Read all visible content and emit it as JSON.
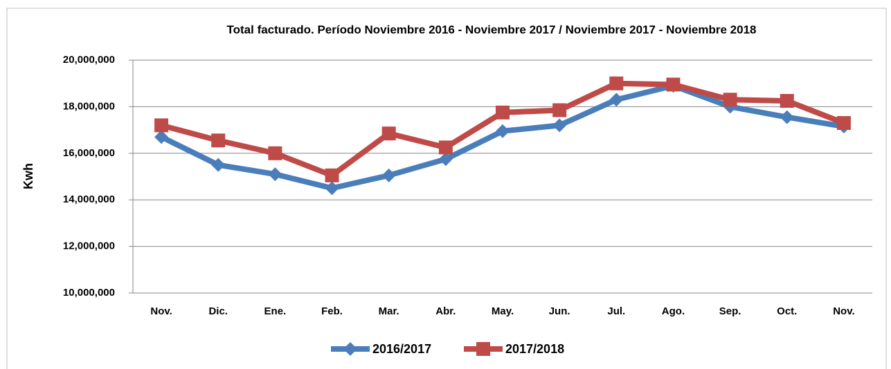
{
  "chart_data": {
    "type": "line",
    "title": "Total facturado. Período Noviembre 2016 - Noviembre 2017 / Noviembre 2017 - Noviembre 2018",
    "y_label": "Kwh",
    "categories": [
      "Nov.",
      "Dic.",
      "Ene.",
      "Feb.",
      "Mar.",
      "Abr.",
      "May.",
      "Jun.",
      "Jul.",
      "Ago.",
      "Sep.",
      "Oct.",
      "Nov."
    ],
    "series": [
      {
        "name": "2016/2017",
        "color": "#4a7ebb",
        "marker": "diamond",
        "values": [
          16700000,
          15500000,
          15100000,
          14500000,
          15050000,
          15750000,
          16950000,
          17200000,
          18300000,
          18900000,
          18000000,
          17550000,
          17150000
        ]
      },
      {
        "name": "2017/2018",
        "color": "#be4b48",
        "marker": "square",
        "values": [
          17200000,
          16550000,
          16000000,
          15050000,
          16850000,
          16250000,
          17750000,
          17850000,
          19000000,
          18950000,
          18300000,
          18250000,
          17300000
        ]
      }
    ],
    "ylim": [
      10000000,
      20000000
    ],
    "yticks": [
      {
        "value": 10000000,
        "label": "10,000,000"
      },
      {
        "value": 12000000,
        "label": "12,000,000"
      },
      {
        "value": 14000000,
        "label": "14,000,000"
      },
      {
        "value": 16000000,
        "label": "16,000,000"
      },
      {
        "value": 18000000,
        "label": "18,000,000"
      },
      {
        "value": 20000000,
        "label": "20,000,000"
      }
    ],
    "grid": true,
    "legend": "bottom"
  }
}
